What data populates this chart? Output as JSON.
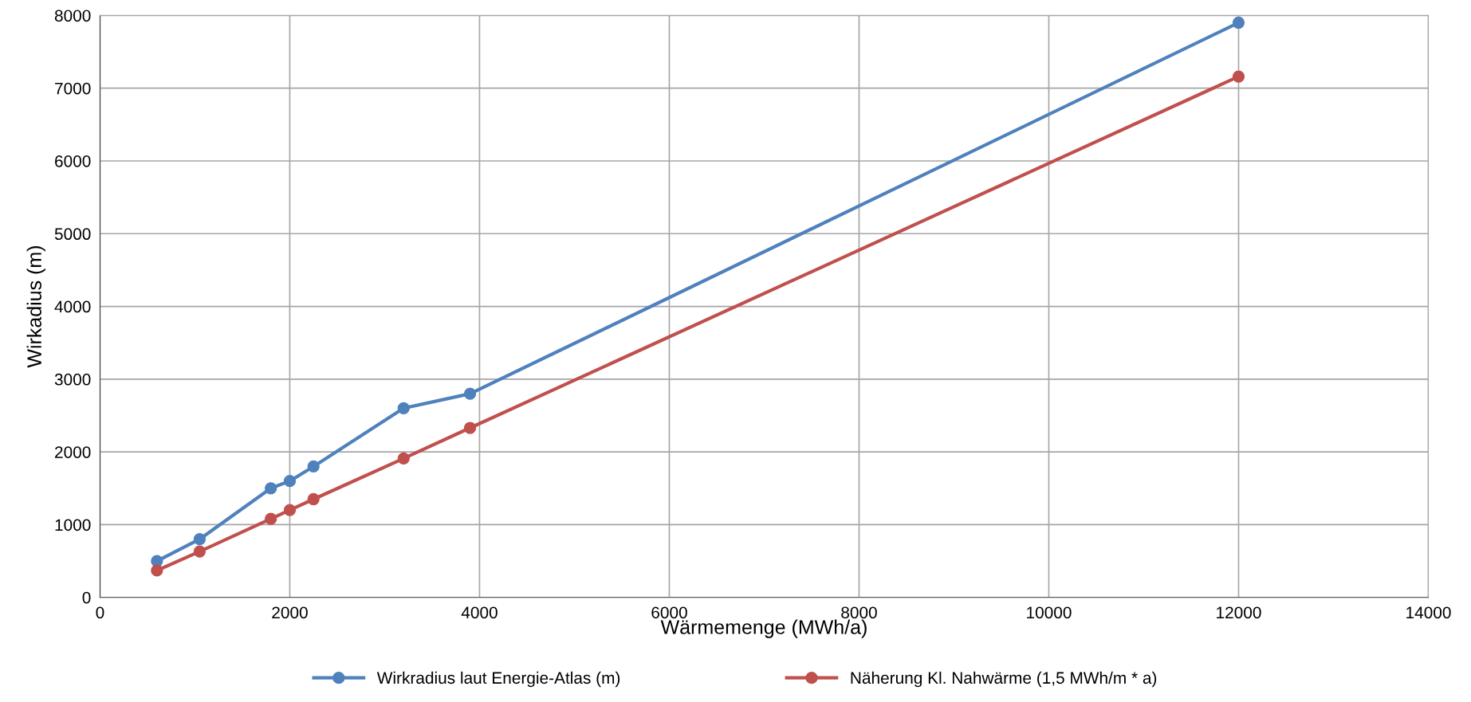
{
  "chart_data": {
    "type": "line",
    "xlabel": "Wärmemenge (MWh/a)",
    "ylabel": "Wirkadius (m)",
    "x": [
      600,
      1050,
      1800,
      2000,
      2250,
      3200,
      3900,
      12000
    ],
    "series": [
      {
        "name": "Wirkradius laut Energie-Atlas (m)",
        "color": "#4f81bd",
        "values": [
          500,
          800,
          1500,
          1600,
          1800,
          2600,
          2800,
          7900
        ]
      },
      {
        "name": "Näherung Kl. Nahwärme (1,5 MWh/m * a)",
        "color": "#c0504d",
        "values": [
          370,
          630,
          1080,
          1200,
          1350,
          1910,
          2330,
          7160
        ]
      }
    ],
    "xlim": [
      0,
      14000
    ],
    "xticks": [
      0,
      2000,
      4000,
      6000,
      8000,
      10000,
      12000,
      14000
    ],
    "ylim": [
      0,
      8000
    ],
    "yticks": [
      0,
      1000,
      2000,
      3000,
      4000,
      5000,
      6000,
      7000,
      8000
    ],
    "grid": true,
    "legend": "bottom",
    "marker": "circle",
    "line_style": "solid"
  }
}
